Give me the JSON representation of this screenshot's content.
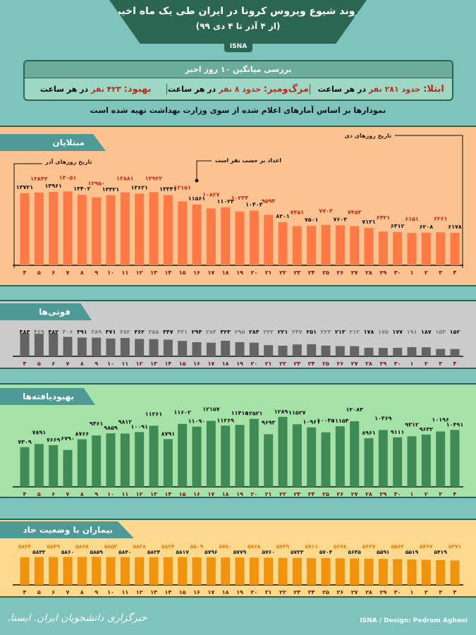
{
  "header": {
    "title": "روند شیوع ویروس کرونا در ایران طی یک ماه اخیر",
    "subtitle": "(از ۴ آذر تا ۴ دی ۹۹)",
    "badge": "ISNA"
  },
  "summary": {
    "heading": "بررسی میانگین ۱۰ روز اخیر",
    "infection": {
      "label": "ابتلا:",
      "value": "حدود ۲۸۱ نفر",
      "suffix": "در هر ساعت"
    },
    "death": {
      "label": "مرگ‌ومیر:",
      "value": "حدود ۸ نفر",
      "suffix": "در هر ساعت"
    },
    "recovery": {
      "label": "بهبود:",
      "value": "۴۲۳ نفر",
      "suffix": "در هر ساعت"
    }
  },
  "note": "نمودارها بر اساس آمارهای اعلام شده از سوی وزارت بهداشت تهیه شده است",
  "footer": {
    "logo_text": "خبرگزاری دانشجویان ایران. ایسنا.",
    "credit": "ISNA / Design: Pedram Aghaei"
  },
  "colors": {
    "header": "#2a6652",
    "infection_bar": "#ff7a47",
    "death_bar": "#646464",
    "recovery_bar": "#3f8a55",
    "critical_bar": "#f0930f"
  },
  "chart_data": [
    {
      "type": "bar",
      "title": "مبتلایان",
      "annotation": "اعداد بر حسب نفر است",
      "azar_label": "تاریخ روزهای آذر",
      "dey_label": "تاریخ روزهای دی",
      "categories": [
        "۴",
        "۵",
        "۶",
        "۷",
        "۸",
        "۹",
        "۱۰",
        "۱۱",
        "۱۲",
        "۱۳",
        "۱۴",
        "۱۵",
        "۱۶",
        "۱۷",
        "۱۸",
        "۱۹",
        "۲۰",
        "۲۱",
        "۲۲",
        "۲۳",
        "۲۴",
        "۲۵",
        "۲۶",
        "۲۷",
        "۲۸",
        "۲۹",
        "۳۰",
        "۱",
        "۲",
        "۳",
        "۴"
      ],
      "values": [
        13721,
        13843,
        13961,
        14051,
        13402,
        12950,
        13321,
        13881,
        13621,
        13922,
        13341,
        12151,
        11561,
        10827,
        11023,
        10223,
        10403,
        9594,
        8201,
        7451,
        7501,
        7704,
        7603,
        7453,
        7121,
        6421,
        6312,
        6151,
        6208,
        6261,
        6178
      ],
      "ylim": [
        0,
        14500
      ]
    },
    {
      "type": "bar",
      "title": "فوتی‌ها",
      "categories": [
        "۴",
        "۵",
        "۶",
        "۷",
        "۸",
        "۹",
        "۱۰",
        "۱۱",
        "۱۲",
        "۱۳",
        "۱۴",
        "۱۵",
        "۱۶",
        "۱۷",
        "۱۸",
        "۱۹",
        "۲۰",
        "۲۱",
        "۲۲",
        "۲۳",
        "۲۴",
        "۲۵",
        "۲۶",
        "۲۷",
        "۲۸",
        "۲۹",
        "۳۰",
        "۱",
        "۲",
        "۳",
        "۴"
      ],
      "values": [
        483,
        469,
        482,
        406,
        391,
        389,
        371,
        382,
        362,
        358,
        347,
        321,
        294,
        284,
        323,
        295,
        284,
        232,
        221,
        247,
        251,
        223,
        213,
        212,
        178,
        175,
        177,
        191,
        187,
        153,
        152
      ],
      "ylim": [
        0,
        500
      ]
    },
    {
      "type": "bar",
      "title": "بهبودیافته‌ها",
      "categories": [
        "۴",
        "۵",
        "۶",
        "۷",
        "۸",
        "۹",
        "۱۰",
        "۱۱",
        "۱۲",
        "۱۳",
        "۱۴",
        "۱۵",
        "۱۶",
        "۱۷",
        "۱۸",
        "۱۹",
        "۲۰",
        "۲۱",
        "۲۲",
        "۲۳",
        "۲۴",
        "۲۵",
        "۲۶",
        "۲۷",
        "۲۸",
        "۲۹",
        "۳۰",
        "۱",
        "۲",
        "۳",
        "۴"
      ],
      "values": [
        7309,
        7891,
        7669,
        6790,
        8766,
        9461,
        9859,
        9812,
        10091,
        11261,
        8791,
        11602,
        11090,
        12157,
        11269,
        11415,
        12521,
        9693,
        12890,
        11527,
        10961,
        10045,
        11154,
        12083,
        8961,
        10469,
        9111,
        9312,
        9632,
        10196,
        10491
      ],
      "ylim": [
        0,
        13000
      ]
    },
    {
      "type": "bar",
      "title": "بیماران با وضعیت حاد",
      "categories": [
        "۴",
        "۵",
        "۶",
        "۷",
        "۸",
        "۹",
        "۱۰",
        "۱۱",
        "۱۲",
        "۱۳",
        "۱۴",
        "۱۵",
        "۱۶",
        "۱۷",
        "۱۸",
        "۱۹",
        "۲۰",
        "۲۱",
        "۲۲",
        "۲۳",
        "۲۴",
        "۲۵",
        "۲۶",
        "۲۷",
        "۲۸",
        "۲۹",
        "۳۰",
        "۱",
        "۲",
        "۳",
        "۴"
      ],
      "values": [
        5824,
        5832,
        5849,
        5860,
        5865,
        5859,
        5852,
        5840,
        5828,
        5824,
        5824,
        5817,
        5809,
        5796,
        5780,
        5779,
        5768,
        5760,
        5739,
        5723,
        5711,
        5704,
        5678,
        5645,
        5627,
        5591,
        5563,
        5519,
        5467,
        5419,
        5371
      ],
      "ylim": [
        2000,
        5900
      ]
    }
  ]
}
